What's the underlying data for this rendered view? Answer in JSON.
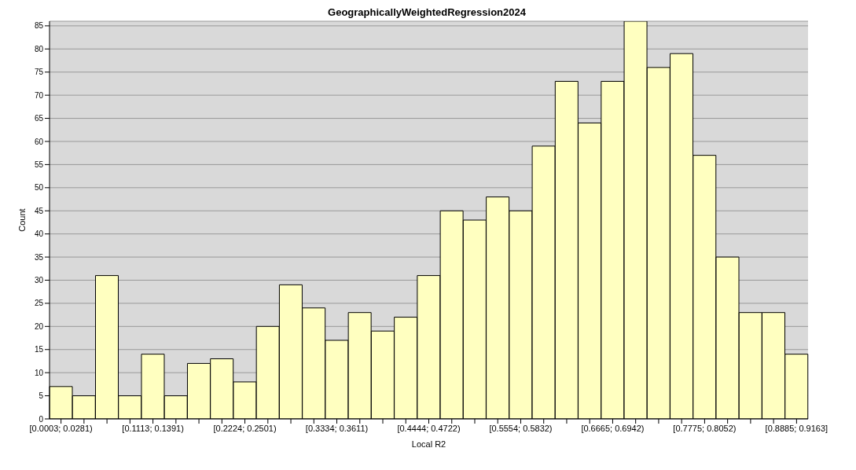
{
  "chart_data": {
    "type": "bar",
    "title": "GeographicallyWeightedRegression2024",
    "xlabel": "Local R2",
    "ylabel": "Count",
    "categories": [
      "[0.0003; 0.0281)",
      null,
      null,
      null,
      "[0.1113; 0.1391)",
      null,
      null,
      null,
      "[0.2224; 0.2501)",
      null,
      null,
      null,
      "[0.3334; 0.3611)",
      null,
      null,
      null,
      "[0.4444; 0.4722)",
      null,
      null,
      null,
      "[0.5554; 0.5832)",
      null,
      null,
      null,
      "[0.6665; 0.6942)",
      null,
      null,
      null,
      "[0.7775; 0.8052)",
      null,
      null,
      null,
      "[0.8885; 0.9163]"
    ],
    "values": [
      7,
      5,
      31,
      5,
      14,
      5,
      12,
      13,
      8,
      20,
      29,
      24,
      17,
      23,
      19,
      22,
      31,
      45,
      43,
      48,
      45,
      59,
      73,
      64,
      73,
      86,
      76,
      79,
      57,
      35,
      23,
      23,
      14
    ],
    "color": "#ffffc0",
    "ylim": [
      0,
      86
    ],
    "yticks": [
      0,
      5,
      10,
      15,
      20,
      25,
      30,
      35,
      40,
      45,
      50,
      55,
      60,
      65,
      70,
      75,
      80,
      85
    ],
    "grid": "y"
  }
}
